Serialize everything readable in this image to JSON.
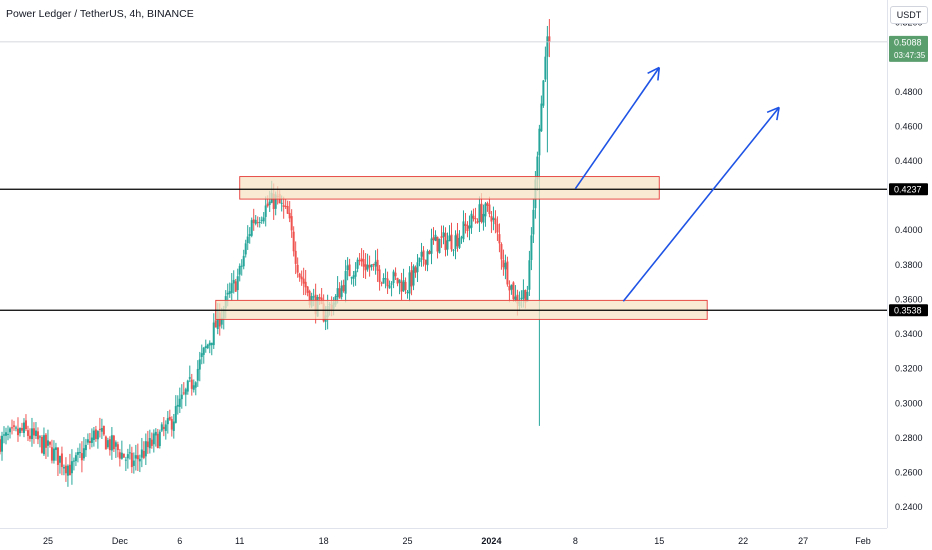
{
  "header": {
    "title": "Power Ledger / TetherUS, 4h, BINANCE",
    "currency_button": "USDT"
  },
  "price_axis": {
    "ticks": [
      "0.5200",
      "0.4800",
      "0.4600",
      "0.4400",
      "0.4000",
      "0.3800",
      "0.3600",
      "0.3400",
      "0.3200",
      "0.3000",
      "0.2800",
      "0.2600",
      "0.2400"
    ],
    "current_price": "0.5088",
    "countdown": "03:47:35",
    "level_high_label": "0.4237",
    "level_low_label": "0.3538"
  },
  "time_axis": {
    "ticks": [
      "25",
      "Dec",
      "6",
      "11",
      "18",
      "25",
      "2024",
      "8",
      "15",
      "22",
      "27",
      "Feb"
    ]
  },
  "colors": {
    "up": "#26a69a",
    "down": "#ef5350",
    "current_badge": "#5b9e6e",
    "zone_fill": "#f7e3c4",
    "zone_border": "#e53935",
    "arrow": "#1e53e5",
    "level_line": "#000000"
  },
  "chart_data": {
    "type": "candlestick",
    "symbol": "Power Ledger / TetherUS",
    "interval": "4h",
    "exchange": "BINANCE",
    "ylim": [
      0.228,
      0.533
    ],
    "x_start": "2023-11-21",
    "x_end": "2024-02-03",
    "price_ticks": [
      0.52,
      0.48,
      0.46,
      0.44,
      0.4,
      0.38,
      0.36,
      0.34,
      0.32,
      0.3,
      0.28,
      0.26,
      0.24
    ],
    "date_ticks": [
      {
        "label": "25",
        "date": "2023-11-25"
      },
      {
        "label": "Dec",
        "date": "2023-12-01"
      },
      {
        "label": "6",
        "date": "2023-12-06"
      },
      {
        "label": "11",
        "date": "2023-12-11"
      },
      {
        "label": "18",
        "date": "2023-12-18"
      },
      {
        "label": "25",
        "date": "2023-12-25"
      },
      {
        "label": "2024",
        "date": "2024-01-01"
      },
      {
        "label": "8",
        "date": "2024-01-08"
      },
      {
        "label": "15",
        "date": "2024-01-15"
      },
      {
        "label": "22",
        "date": "2024-01-22"
      },
      {
        "label": "27",
        "date": "2024-01-27"
      },
      {
        "label": "Feb",
        "date": "2024-02-01"
      }
    ],
    "price_path": [
      {
        "date": "2023-11-21",
        "price": 0.278
      },
      {
        "date": "2023-11-23",
        "price": 0.284
      },
      {
        "date": "2023-11-25",
        "price": 0.274
      },
      {
        "date": "2023-11-27",
        "price": 0.262
      },
      {
        "date": "2023-11-29",
        "price": 0.283
      },
      {
        "date": "2023-12-01",
        "price": 0.272
      },
      {
        "date": "2023-12-02",
        "price": 0.265
      },
      {
        "date": "2023-12-05",
        "price": 0.286
      },
      {
        "date": "2023-12-07",
        "price": 0.312
      },
      {
        "date": "2023-12-09",
        "price": 0.345
      },
      {
        "date": "2023-12-10",
        "price": 0.36
      },
      {
        "date": "2023-12-11",
        "price": 0.375
      },
      {
        "date": "2023-12-12",
        "price": 0.405
      },
      {
        "date": "2023-12-13",
        "price": 0.412
      },
      {
        "date": "2023-12-14",
        "price": 0.418
      },
      {
        "date": "2023-12-15",
        "price": 0.408
      },
      {
        "date": "2023-12-16",
        "price": 0.375
      },
      {
        "date": "2023-12-17",
        "price": 0.36
      },
      {
        "date": "2023-12-18",
        "price": 0.352
      },
      {
        "date": "2023-12-19",
        "price": 0.36
      },
      {
        "date": "2023-12-20",
        "price": 0.375
      },
      {
        "date": "2023-12-21",
        "price": 0.382
      },
      {
        "date": "2023-12-23",
        "price": 0.374
      },
      {
        "date": "2023-12-25",
        "price": 0.368
      },
      {
        "date": "2023-12-27",
        "price": 0.392
      },
      {
        "date": "2023-12-29",
        "price": 0.395
      },
      {
        "date": "2023-12-31",
        "price": 0.41
      },
      {
        "date": "2024-01-01",
        "price": 0.41
      },
      {
        "date": "2024-01-02",
        "price": 0.382
      },
      {
        "date": "2024-01-03",
        "price": 0.36
      },
      {
        "date": "2024-01-04",
        "price": 0.365
      },
      {
        "date": "2024-01-05",
        "price": 0.46
      },
      {
        "date": "2024-01-05T12:00",
        "price": 0.5
      }
    ],
    "current_price": 0.5088,
    "session_high": 0.522,
    "session_low": 0.287,
    "horizontal_levels": [
      0.4237,
      0.3538
    ],
    "zones": [
      {
        "from_date": "2023-12-11",
        "to_date": "2024-01-15",
        "low": 0.418,
        "high": 0.431
      },
      {
        "from_date": "2023-12-09",
        "to_date": "2024-01-19",
        "low": 0.3485,
        "high": 0.3595
      }
    ],
    "arrows": [
      {
        "from": {
          "date": "2024-01-08",
          "price": 0.424
        },
        "to": {
          "date": "2024-01-15",
          "price": 0.494
        }
      },
      {
        "from": {
          "date": "2024-01-12",
          "price": 0.359
        },
        "to": {
          "date": "2024-01-25",
          "price": 0.471
        }
      }
    ]
  }
}
